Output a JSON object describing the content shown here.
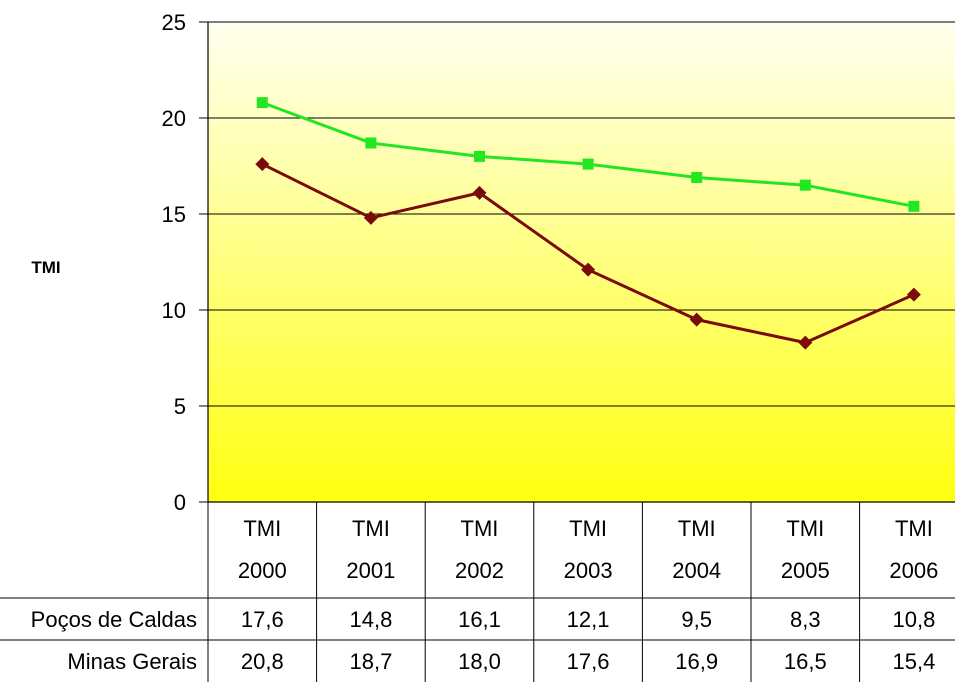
{
  "chart_data": {
    "type": "line",
    "title": "",
    "xlabel": "",
    "ylabel": "TMI",
    "ylim": [
      0,
      25
    ],
    "yticks": [
      0,
      5,
      10,
      15,
      20,
      25
    ],
    "grid": true,
    "categories": [
      [
        "TMI",
        "2000"
      ],
      [
        "TMI",
        "2001"
      ],
      [
        "TMI",
        "2002"
      ],
      [
        "TMI",
        "2003"
      ],
      [
        "TMI",
        "2004"
      ],
      [
        "TMI",
        "2005"
      ],
      [
        "TMI",
        "2006"
      ]
    ],
    "series": [
      {
        "name": "Poços de Caldas",
        "color": "#7b0b0b",
        "marker": "diamond",
        "values": [
          17.6,
          14.8,
          16.1,
          12.1,
          9.5,
          8.3,
          10.8
        ],
        "labels": [
          "17,6",
          "14,8",
          "16,1",
          "12,1",
          "9,5",
          "8,3",
          "10,8"
        ]
      },
      {
        "name": "Minas Gerais",
        "color": "#22e622",
        "marker": "square",
        "values": [
          20.8,
          18.7,
          18.0,
          17.6,
          16.9,
          16.5,
          15.4
        ],
        "labels": [
          "20,8",
          "18,7",
          "18,0",
          "17,6",
          "16,9",
          "16,5",
          "15,4"
        ]
      }
    ],
    "plot_background": [
      "#fffff0",
      "#ffff10"
    ]
  }
}
